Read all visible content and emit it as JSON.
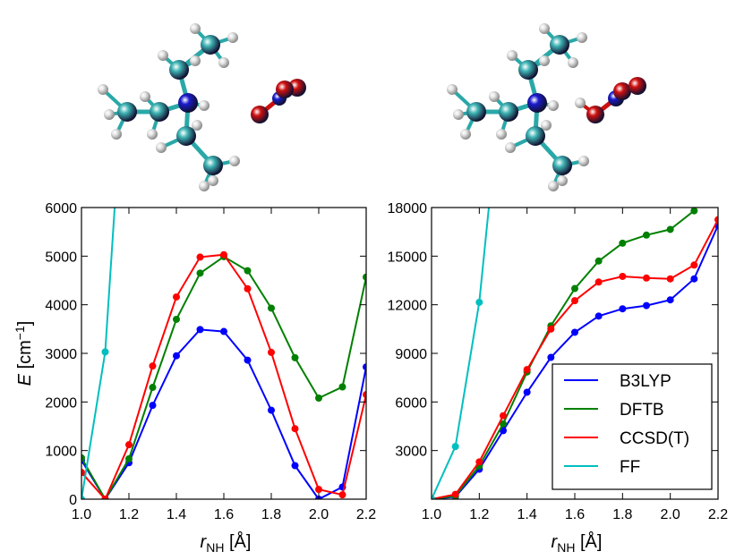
{
  "colors": {
    "B3LYP": "#0000ff",
    "DFTB": "#008000",
    "CCSD(T)": "#ff0000",
    "FF": "#00bfbf",
    "carbon": "#3fb4b4",
    "nitrogen": "#1a1acc",
    "oxygen": "#d01010",
    "hydrogen": "#e6e6e6",
    "bond": "#2aa8a8"
  },
  "molecules": [
    {
      "name": "left-molecule",
      "atoms": [
        "C",
        "C",
        "C",
        "C",
        "C",
        "C",
        "N",
        "O",
        "O",
        "O",
        "H"
      ],
      "description_icon": "molecule-ball-stick-icon"
    },
    {
      "name": "right-molecule",
      "atoms": [
        "C",
        "C",
        "C",
        "C",
        "C",
        "C",
        "N",
        "O",
        "O",
        "O",
        "H"
      ],
      "description_icon": "molecule-ball-stick-icon"
    }
  ],
  "labels": {
    "ylabel_italic": "E",
    "ylabel_rest": " [cm",
    "ylabel_sup": "−1",
    "ylabel_close": "]",
    "xlabel_italic": "r",
    "xlabel_sub": "NH",
    "xlabel_rest": " [Å]"
  },
  "chart_data": [
    {
      "type": "line",
      "xlim": [
        1.0,
        2.2
      ],
      "ylim": [
        0,
        6000
      ],
      "xticks": [
        "1.0",
        "1.2",
        "1.4",
        "1.6",
        "1.8",
        "2.0",
        "2.2"
      ],
      "yticks": [
        "0",
        "1000",
        "2000",
        "3000",
        "4000",
        "5000",
        "6000"
      ],
      "xlabel": "r_NH [Å]",
      "ylabel": "E [cm−1]",
      "grid": false,
      "series": [
        {
          "name": "B3LYP",
          "x": [
            1.0,
            1.1,
            1.2,
            1.3,
            1.4,
            1.5,
            1.6,
            1.7,
            1.8,
            1.9,
            2.0,
            2.1,
            2.2
          ],
          "y": [
            800,
            0,
            750,
            1930,
            2950,
            3490,
            3450,
            2860,
            1830,
            690,
            0,
            250,
            2720
          ]
        },
        {
          "name": "DFTB",
          "x": [
            1.0,
            1.1,
            1.2,
            1.3,
            1.4,
            1.5,
            1.6,
            1.7,
            1.8,
            1.9,
            2.0,
            2.1,
            2.2
          ],
          "y": [
            850,
            0,
            830,
            2300,
            3700,
            4650,
            4990,
            4700,
            3930,
            2910,
            2080,
            2310,
            4570
          ]
        },
        {
          "name": "CCSD(T)",
          "x": [
            1.0,
            1.1,
            1.2,
            1.3,
            1.4,
            1.5,
            1.6,
            1.7,
            1.8,
            1.9,
            2.0,
            2.1,
            2.2
          ],
          "y": [
            550,
            0,
            1120,
            2740,
            4160,
            4980,
            5030,
            4330,
            3020,
            1450,
            200,
            90,
            2150
          ]
        },
        {
          "name": "FF",
          "x": [
            1.0,
            1.1,
            1.14
          ],
          "y": [
            0,
            3030,
            6000
          ],
          "marker_x": [
            1.0,
            1.1
          ],
          "marker_y": [
            0,
            3030
          ]
        }
      ]
    },
    {
      "type": "line",
      "xlim": [
        1.0,
        2.2
      ],
      "ylim": [
        0,
        18000
      ],
      "xticks": [
        "1.0",
        "1.2",
        "1.4",
        "1.6",
        "1.8",
        "2.0",
        "2.2"
      ],
      "yticks": [
        "3000",
        "6000",
        "9000",
        "12000",
        "15000",
        "18000"
      ],
      "xlabel": "r_NH [Å]",
      "grid": false,
      "legend": {
        "placement": "bottom-right",
        "entries": [
          "B3LYP",
          "DFTB",
          "CCSD(T)",
          "FF"
        ]
      },
      "series": [
        {
          "name": "B3LYP",
          "x": [
            1.0,
            1.1,
            1.2,
            1.3,
            1.4,
            1.5,
            1.6,
            1.7,
            1.8,
            1.9,
            2.0,
            2.1,
            2.2
          ],
          "y": [
            0,
            150,
            1850,
            4230,
            6600,
            8750,
            10300,
            11300,
            11750,
            11950,
            12300,
            13600,
            16900
          ]
        },
        {
          "name": "DFTB",
          "x": [
            1.0,
            1.1,
            1.2,
            1.3,
            1.4,
            1.5,
            1.6,
            1.7,
            1.8,
            1.9,
            2.0,
            2.1
          ],
          "y": [
            0,
            200,
            2050,
            4650,
            7850,
            10700,
            13000,
            14700,
            15800,
            16300,
            16650,
            17800
          ]
        },
        {
          "name": "CCSD(T)",
          "x": [
            1.0,
            1.1,
            1.2,
            1.3,
            1.4,
            1.5,
            1.6,
            1.7,
            1.8,
            1.9,
            2.0,
            2.1,
            2.2
          ],
          "y": [
            0,
            300,
            2300,
            5150,
            8000,
            10500,
            12250,
            13400,
            13750,
            13650,
            13600,
            14450,
            17250
          ]
        },
        {
          "name": "FF",
          "x": [
            1.0,
            1.1,
            1.2,
            1.24
          ],
          "y": [
            0,
            3250,
            12150,
            18000
          ],
          "marker_x": [
            1.0,
            1.1,
            1.2
          ],
          "marker_y": [
            0,
            3250,
            12150
          ]
        }
      ]
    }
  ]
}
